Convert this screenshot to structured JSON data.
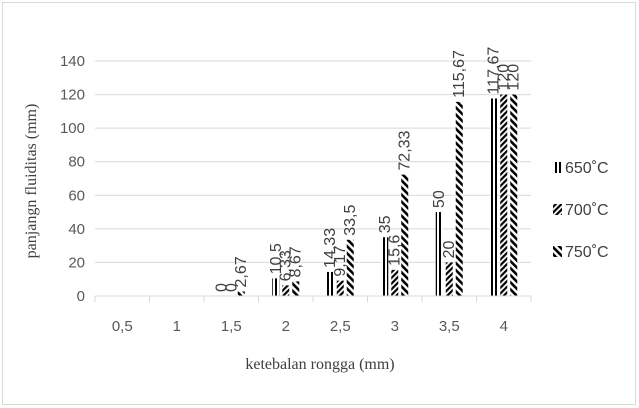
{
  "chart_data": {
    "type": "bar",
    "title": "",
    "xlabel": "ketebalan rongga (mm)",
    "ylabel": "panjangn fluiditas (mm)",
    "ylim": [
      0,
      140
    ],
    "yticks": [
      "0",
      "20",
      "40",
      "60",
      "80",
      "100",
      "120",
      "140"
    ],
    "grid": "horizontal",
    "legend_position": "right",
    "categories": [
      "0,5",
      "1",
      "1,5",
      "2",
      "2,5",
      "3",
      "3,5",
      "4"
    ],
    "series": [
      {
        "name": "650˚C",
        "color": "#000000",
        "pattern": "vertical-stripes",
        "values": [
          null,
          null,
          0,
          10.5,
          14.33,
          35,
          50,
          117.67
        ],
        "labels": [
          "",
          "",
          "0",
          "10,5",
          "14,33",
          "35",
          "50",
          "117,67"
        ]
      },
      {
        "name": "700˚C",
        "color": "#000000",
        "pattern": "diagonal-stripes",
        "values": [
          null,
          null,
          0,
          6.33,
          9.17,
          15.6,
          20,
          120
        ],
        "labels": [
          "",
          "",
          "0",
          "6,33",
          "9,17",
          "15,6",
          "20",
          "120"
        ]
      },
      {
        "name": "750˚C",
        "color": "#000000",
        "pattern": "diagonal-stripes",
        "values": [
          null,
          null,
          2.67,
          8.67,
          33.5,
          72.33,
          115.67,
          120
        ],
        "labels": [
          "",
          "",
          "2,67",
          "8,67",
          "33,5",
          "72,33",
          "115,67",
          "120"
        ]
      }
    ]
  }
}
